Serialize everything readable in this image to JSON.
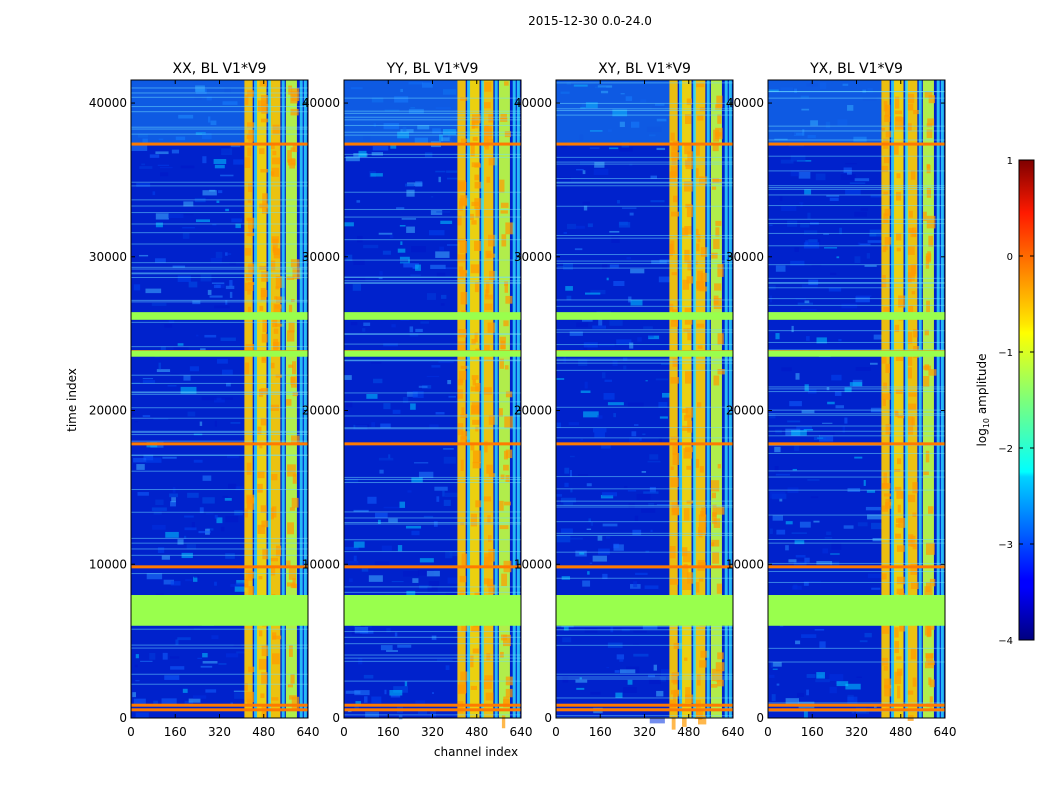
{
  "chart_data": {
    "type": "heatmap",
    "title": "2015-12-30 0.0-24.0",
    "xlabel": "channel index",
    "ylabel": "time index",
    "xlim": [
      0,
      640
    ],
    "ylim": [
      0,
      41500
    ],
    "x_ticks": [
      0,
      160,
      320,
      480,
      640
    ],
    "y_ticks": [
      0,
      10000,
      20000,
      30000,
      40000
    ],
    "panels": [
      {
        "title": "XX, BL V1*V9"
      },
      {
        "title": "YY, BL V1*V9"
      },
      {
        "title": "XY, BL V1*V9"
      },
      {
        "title": "YX, BL V1*V9"
      }
    ],
    "colorbar": {
      "label": "log10 amplitude",
      "label_base": "log",
      "label_sub": "10",
      "label_rest": " amplitude",
      "range": [
        -4,
        1
      ],
      "ticks": [
        1,
        0,
        -1,
        -2,
        -3,
        -4
      ],
      "tick_labels": [
        "1",
        "0",
        "−1",
        "−2",
        "−3",
        "−4"
      ],
      "colormap": "jet"
    },
    "flagged_time_ranges": [
      [
        6000,
        8000
      ]
    ],
    "rfi_horizontal_bands": [
      500,
      800,
      9800,
      17800,
      23800,
      26200,
      37300
    ],
    "bright_channel_bands": [
      [
        410,
        440
      ],
      [
        455,
        490
      ],
      [
        500,
        540
      ],
      [
        560,
        600
      ]
    ]
  },
  "colors": {
    "flagged": "#99ff4d",
    "rfi": "#ff7a00",
    "background_low": "#0022cc",
    "frame": "#000000"
  }
}
